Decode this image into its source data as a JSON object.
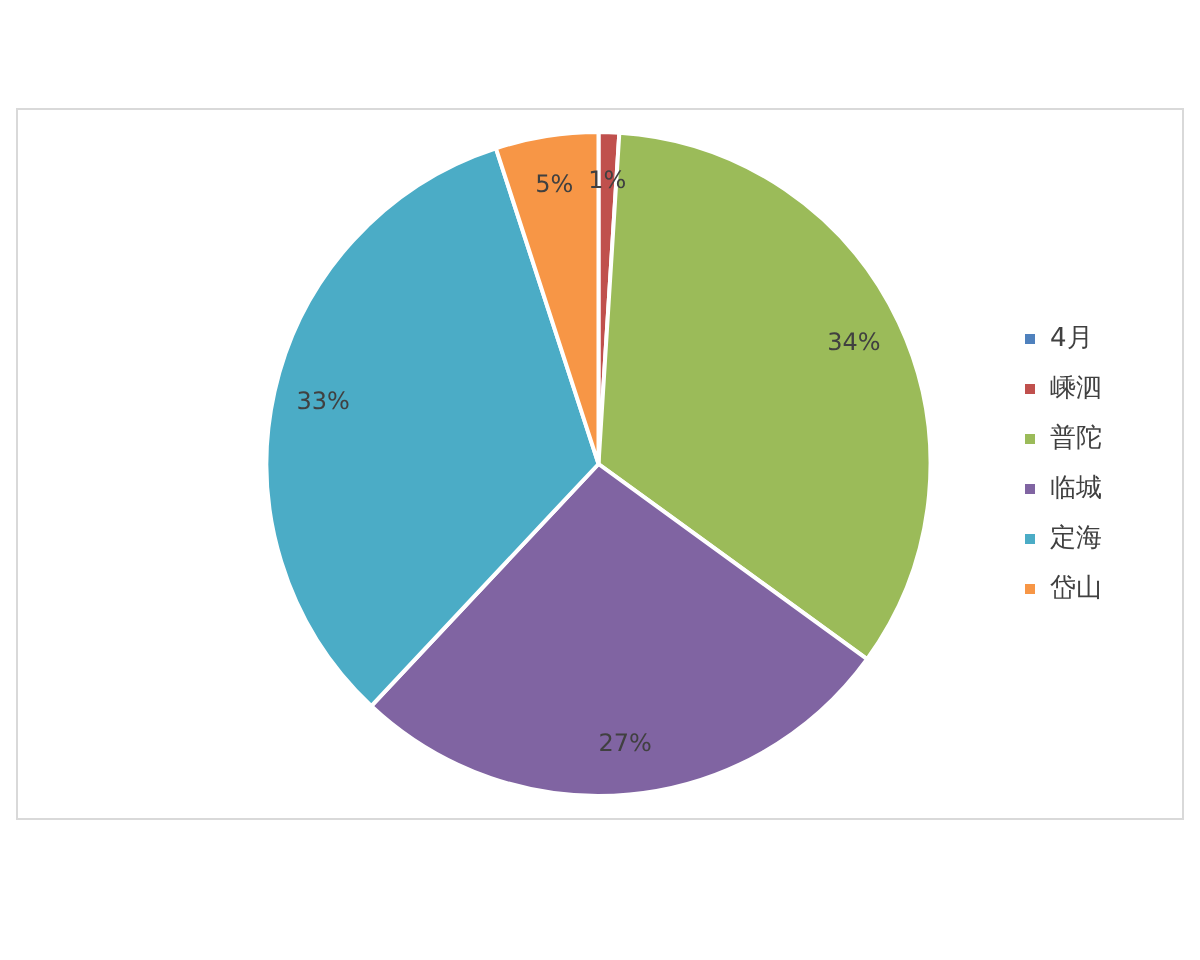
{
  "chart_data": {
    "type": "pie",
    "categories": [
      "4月",
      "嵊泗",
      "普陀",
      "临城",
      "定海",
      "岱山"
    ],
    "values": [
      0,
      1,
      34,
      27,
      33,
      5
    ],
    "colors": [
      "#4f81bd",
      "#c0504d",
      "#9bbb59",
      "#8064a2",
      "#4bacc6",
      "#f79646"
    ],
    "value_labels": [
      null,
      "1%",
      "34%",
      "27%",
      "33%",
      "5%"
    ],
    "legend": "right"
  }
}
